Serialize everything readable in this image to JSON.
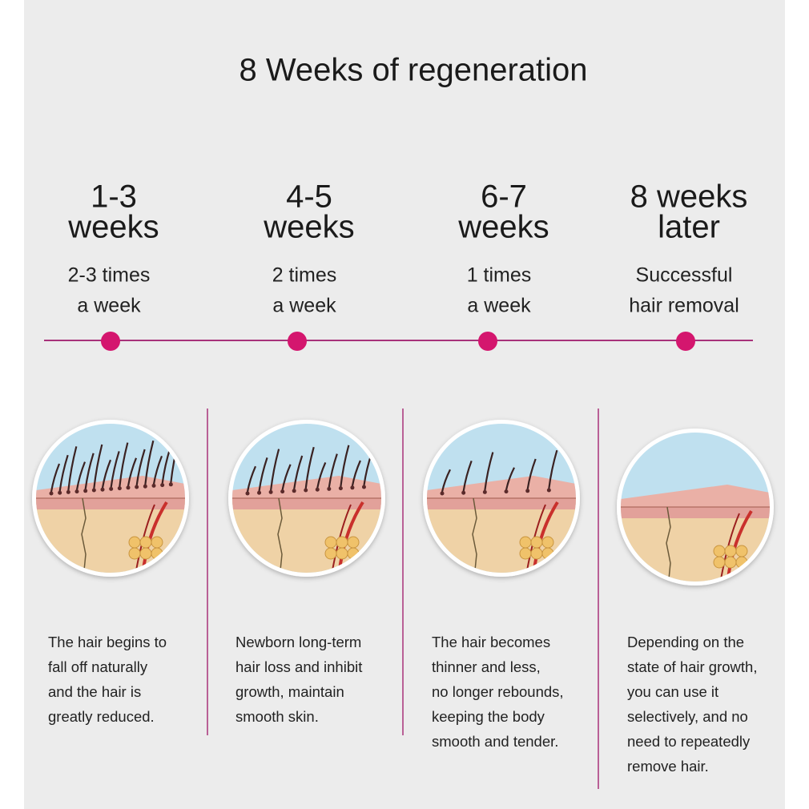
{
  "title": "8 Weeks of regeneration",
  "stages": [
    {
      "period": [
        "1-3",
        "weeks"
      ],
      "frequency": [
        "2-3 times",
        "a week"
      ],
      "description": [
        "The hair begins to",
        "fall off naturally",
        "and the hair is",
        "greatly reduced."
      ]
    },
    {
      "period": [
        "4-5",
        "weeks"
      ],
      "frequency": [
        "2 times",
        "a week"
      ],
      "description": [
        "Newborn long-term",
        "hair loss and inhibit",
        "growth, maintain",
        "smooth skin."
      ]
    },
    {
      "period": [
        "6-7",
        "weeks"
      ],
      "frequency": [
        "1 times",
        "a week"
      ],
      "description": [
        "The hair becomes",
        "thinner and less,",
        "no longer rebounds,",
        "keeping the body",
        "smooth and tender."
      ]
    },
    {
      "period": [
        "8 weeks",
        "later"
      ],
      "frequency": [
        "Successful",
        "hair removal"
      ],
      "description": [
        "Depending on the",
        "state of hair growth,",
        "you can use it",
        "selectively, and no",
        "need to repeatedly",
        "remove hair."
      ]
    }
  ]
}
